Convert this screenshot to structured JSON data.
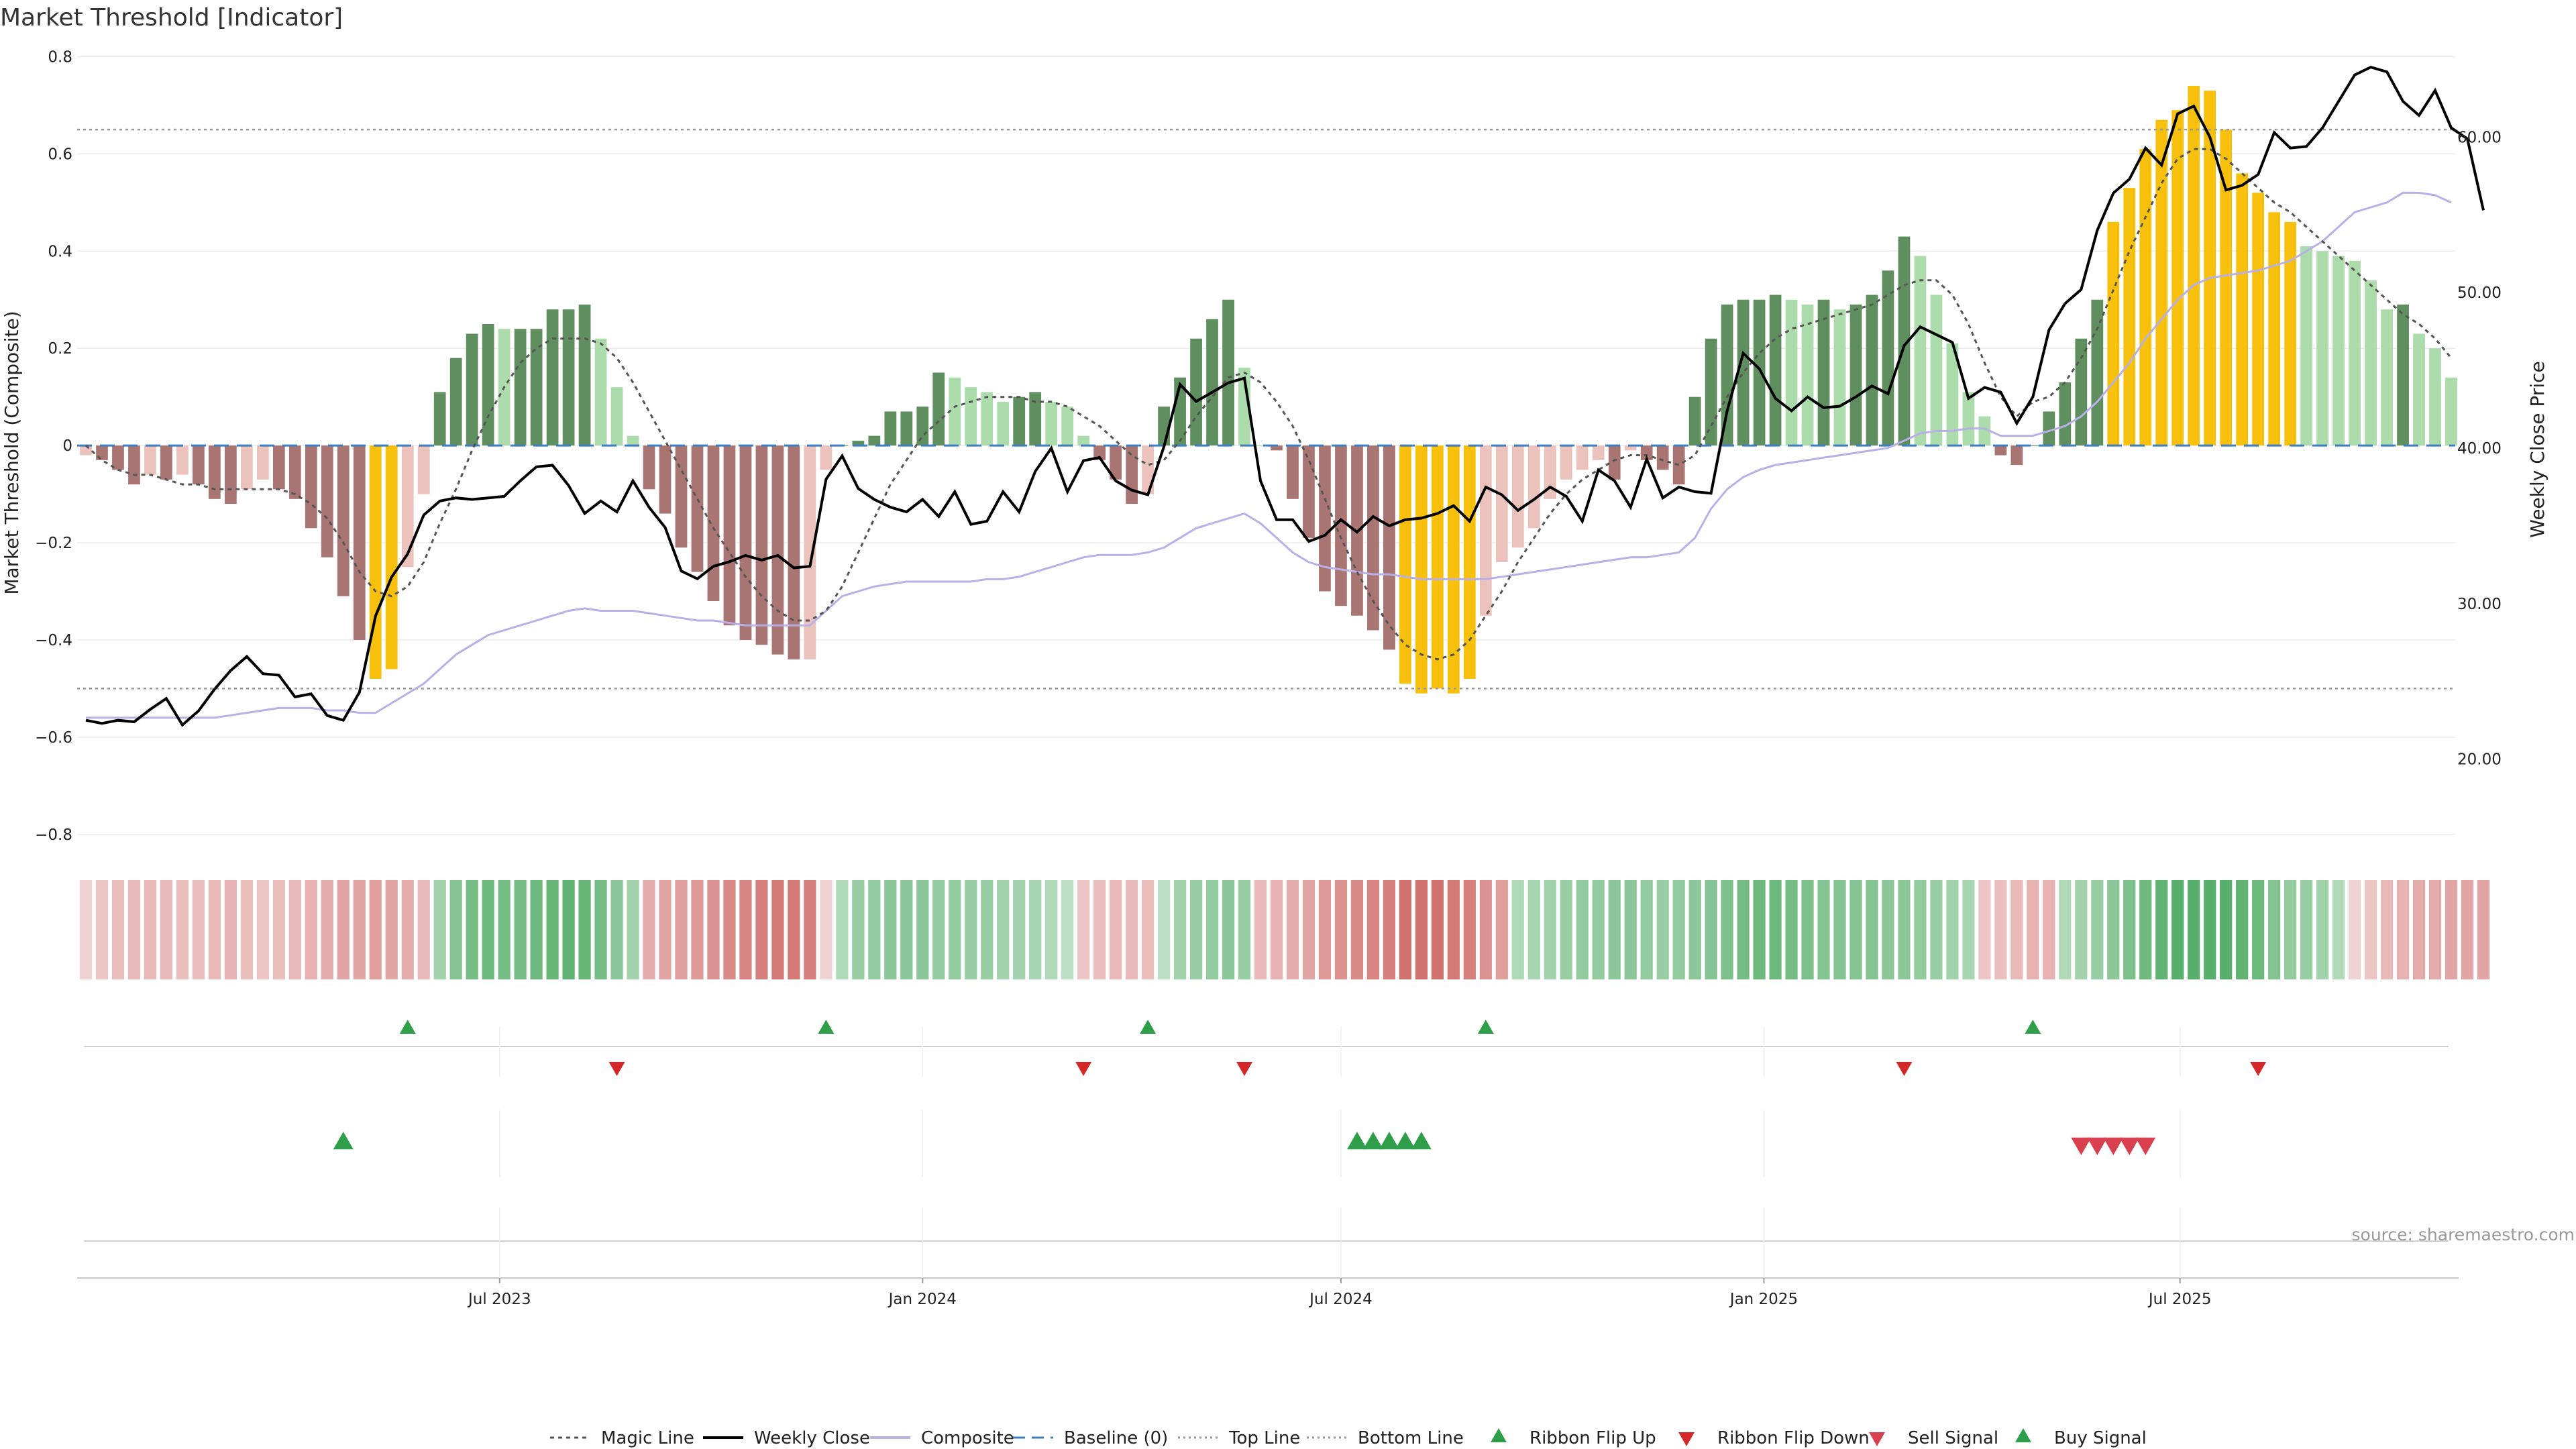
{
  "chart_data": {
    "type": "bar",
    "title": "Market Threshold [Indicator]",
    "ylabel_left": "Market Threshold (Composite)",
    "ylabel_right": "Weekly Close Price",
    "source": "source: sharemaestro.com",
    "ylim_left": [
      -0.85,
      0.82
    ],
    "yticks_left": [
      "0.8",
      "0.6",
      "0.4",
      "0.2",
      "0",
      "−0.2",
      "−0.4",
      "−0.6",
      "−0.8"
    ],
    "ytick_values_left": [
      0.8,
      0.6,
      0.4,
      0.2,
      0,
      -0.2,
      -0.4,
      -0.6,
      -0.8
    ],
    "ylim_right": [
      13.6,
      65.8
    ],
    "yticks_right": [
      "60.00",
      "50.00",
      "40.00",
      "30.00",
      "20.00"
    ],
    "ytick_values_right": [
      60,
      50,
      40,
      30,
      20
    ],
    "x_start": "2023-01-02",
    "date_labels": [
      "Jul 2023",
      "Jan 2024",
      "Jul 2024",
      "Jan 2025",
      "Jul 2025"
    ],
    "date_label_dates": [
      "2023-07-01",
      "2024-01-01",
      "2024-07-01",
      "2025-01-01",
      "2025-07-01"
    ],
    "top_line": 0.65,
    "bottom_line": -0.5,
    "baseline": 0,
    "composite_bars": [
      -0.02,
      -0.03,
      -0.05,
      -0.08,
      -0.06,
      -0.07,
      -0.06,
      -0.08,
      -0.11,
      -0.12,
      -0.09,
      -0.07,
      -0.09,
      -0.11,
      -0.17,
      -0.23,
      -0.31,
      -0.4,
      -0.48,
      -0.46,
      -0.25,
      -0.1,
      0.11,
      0.18,
      0.23,
      0.25,
      0.24,
      0.24,
      0.24,
      0.28,
      0.28,
      0.29,
      0.22,
      0.12,
      0.02,
      -0.09,
      -0.14,
      -0.21,
      -0.26,
      -0.32,
      -0.37,
      -0.4,
      -0.41,
      -0.43,
      -0.44,
      -0.44,
      -0.05,
      0.0,
      0.01,
      0.02,
      0.07,
      0.07,
      0.08,
      0.15,
      0.14,
      0.12,
      0.11,
      0.09,
      0.1,
      0.11,
      0.09,
      0.08,
      0.02,
      -0.03,
      -0.07,
      -0.12,
      -0.1,
      0.08,
      0.14,
      0.22,
      0.26,
      0.3,
      0.16,
      0.0,
      -0.01,
      -0.11,
      -0.19,
      -0.3,
      -0.33,
      -0.35,
      -0.38,
      -0.42,
      -0.49,
      -0.51,
      -0.5,
      -0.51,
      -0.48,
      -0.35,
      -0.24,
      -0.21,
      -0.17,
      -0.11,
      -0.07,
      -0.05,
      -0.03,
      -0.07,
      -0.01,
      -0.03,
      -0.05,
      -0.08,
      0.1,
      0.22,
      0.29,
      0.3,
      0.3,
      0.31,
      0.3,
      0.29,
      0.3,
      0.28,
      0.29,
      0.31,
      0.36,
      0.43,
      0.39,
      0.31,
      0.21,
      0.11,
      0.06,
      -0.02,
      -0.04,
      0.0,
      0.07,
      0.13,
      0.22,
      0.3,
      0.46,
      0.53,
      0.61,
      0.67,
      0.69,
      0.74,
      0.73,
      0.65,
      0.56,
      0.52,
      0.48,
      0.46,
      0.41,
      0.4,
      0.39,
      0.38,
      0.34,
      0.28,
      0.29,
      0.23,
      0.2,
      0.14
    ],
    "weekly_close": [
      22.5,
      22.3,
      22.5,
      22.4,
      23.2,
      23.9,
      22.2,
      23.1,
      24.5,
      25.7,
      26.6,
      25.5,
      25.4,
      24.0,
      24.2,
      22.8,
      22.5,
      24.3,
      29.2,
      31.7,
      33.2,
      35.7,
      36.6,
      36.8,
      36.7,
      36.8,
      36.9,
      37.9,
      38.8,
      38.9,
      37.6,
      35.8,
      36.6,
      35.9,
      37.9,
      36.2,
      34.9,
      32.1,
      31.6,
      32.4,
      32.7,
      33.1,
      32.8,
      33.1,
      32.3,
      32.4,
      38.0,
      39.5,
      37.4,
      36.7,
      36.2,
      35.9,
      36.7,
      35.6,
      37.2,
      35.1,
      35.3,
      37.2,
      35.9,
      38.5,
      40.0,
      37.2,
      39.2,
      39.4,
      37.9,
      37.3,
      37.0,
      40.1,
      44.1,
      43.0,
      43.6,
      44.2,
      44.5,
      37.9,
      35.4,
      35.4,
      34.0,
      34.4,
      35.4,
      34.6,
      35.6,
      35.0,
      35.4,
      35.5,
      35.8,
      36.3,
      35.3,
      37.5,
      37.0,
      36.0,
      36.7,
      37.5,
      36.9,
      35.3,
      38.6,
      37.9,
      36.2,
      39.3,
      36.8,
      37.5,
      37.2,
      37.1,
      42.4,
      46.1,
      45.1,
      43.2,
      42.4,
      43.3,
      42.6,
      42.7,
      43.3,
      44.0,
      43.5,
      46.6,
      47.8,
      47.3,
      46.8,
      43.2,
      43.9,
      43.6,
      41.6,
      43.3,
      47.6,
      49.3,
      50.2,
      54.0,
      56.4,
      57.3,
      59.3,
      58.2,
      61.5,
      62.0,
      60.0,
      56.6,
      56.9,
      57.6,
      60.3,
      59.3,
      59.4,
      60.6,
      62.3,
      64.0,
      64.5,
      64.2,
      62.3,
      61.4,
      63.0,
      60.6,
      59.9,
      55.3
    ],
    "magic_line": [
      0.0,
      -0.03,
      -0.05,
      -0.06,
      -0.06,
      -0.07,
      -0.08,
      -0.08,
      -0.09,
      -0.09,
      -0.09,
      -0.09,
      -0.09,
      -0.1,
      -0.12,
      -0.15,
      -0.2,
      -0.26,
      -0.3,
      -0.31,
      -0.29,
      -0.24,
      -0.16,
      -0.09,
      -0.01,
      0.06,
      0.12,
      0.17,
      0.2,
      0.22,
      0.22,
      0.22,
      0.21,
      0.18,
      0.13,
      0.07,
      0.01,
      -0.05,
      -0.11,
      -0.17,
      -0.22,
      -0.27,
      -0.31,
      -0.34,
      -0.36,
      -0.36,
      -0.34,
      -0.29,
      -0.22,
      -0.15,
      -0.08,
      -0.03,
      0.02,
      0.05,
      0.08,
      0.09,
      0.1,
      0.1,
      0.1,
      0.09,
      0.09,
      0.08,
      0.06,
      0.04,
      0.01,
      -0.02,
      -0.04,
      -0.03,
      0.01,
      0.06,
      0.1,
      0.14,
      0.15,
      0.13,
      0.09,
      0.04,
      -0.03,
      -0.11,
      -0.19,
      -0.26,
      -0.32,
      -0.37,
      -0.41,
      -0.43,
      -0.44,
      -0.43,
      -0.4,
      -0.35,
      -0.3,
      -0.24,
      -0.19,
      -0.14,
      -0.1,
      -0.07,
      -0.05,
      -0.03,
      -0.02,
      -0.02,
      -0.03,
      -0.04,
      -0.02,
      0.04,
      0.1,
      0.15,
      0.19,
      0.22,
      0.24,
      0.25,
      0.26,
      0.27,
      0.28,
      0.29,
      0.31,
      0.33,
      0.34,
      0.34,
      0.31,
      0.25,
      0.17,
      0.1,
      0.06,
      0.09,
      0.1,
      0.13,
      0.18,
      0.24,
      0.32,
      0.4,
      0.47,
      0.54,
      0.59,
      0.61,
      0.61,
      0.59,
      0.56,
      0.53,
      0.5,
      0.48,
      0.45,
      0.42,
      0.39,
      0.36,
      0.33,
      0.3,
      0.27,
      0.25,
      0.22,
      0.18
    ],
    "composite_line": [
      -0.56,
      -0.56,
      -0.56,
      -0.56,
      -0.56,
      -0.56,
      -0.56,
      -0.56,
      -0.56,
      -0.555,
      -0.55,
      -0.545,
      -0.54,
      -0.54,
      -0.54,
      -0.545,
      -0.545,
      -0.55,
      -0.55,
      -0.53,
      -0.51,
      -0.49,
      -0.46,
      -0.43,
      -0.41,
      -0.39,
      -0.38,
      -0.37,
      -0.36,
      -0.35,
      -0.34,
      -0.335,
      -0.34,
      -0.34,
      -0.34,
      -0.345,
      -0.35,
      -0.355,
      -0.36,
      -0.36,
      -0.365,
      -0.37,
      -0.37,
      -0.37,
      -0.37,
      -0.37,
      -0.34,
      -0.31,
      -0.3,
      -0.29,
      -0.285,
      -0.28,
      -0.28,
      -0.28,
      -0.28,
      -0.28,
      -0.275,
      -0.275,
      -0.27,
      -0.26,
      -0.25,
      -0.24,
      -0.23,
      -0.225,
      -0.225,
      -0.225,
      -0.22,
      -0.21,
      -0.19,
      -0.17,
      -0.16,
      -0.15,
      -0.14,
      -0.16,
      -0.19,
      -0.22,
      -0.24,
      -0.25,
      -0.255,
      -0.26,
      -0.265,
      -0.265,
      -0.27,
      -0.275,
      -0.275,
      -0.275,
      -0.275,
      -0.275,
      -0.27,
      -0.265,
      -0.26,
      -0.255,
      -0.25,
      -0.245,
      -0.24,
      -0.235,
      -0.23,
      -0.23,
      -0.225,
      -0.22,
      -0.19,
      -0.13,
      -0.09,
      -0.065,
      -0.05,
      -0.04,
      -0.035,
      -0.03,
      -0.025,
      -0.02,
      -0.015,
      -0.01,
      -0.005,
      0.01,
      0.025,
      0.03,
      0.03,
      0.035,
      0.035,
      0.02,
      0.02,
      0.02,
      0.03,
      0.04,
      0.06,
      0.09,
      0.13,
      0.17,
      0.22,
      0.26,
      0.3,
      0.33,
      0.345,
      0.35,
      0.355,
      0.36,
      0.37,
      0.38,
      0.4,
      0.42,
      0.45,
      0.48,
      0.49,
      0.5,
      0.52,
      0.52,
      0.515,
      0.5
    ],
    "ribbon": [
      -0.1,
      -0.2,
      -0.25,
      -0.3,
      -0.3,
      -0.3,
      -0.25,
      -0.25,
      -0.3,
      -0.35,
      -0.25,
      -0.2,
      -0.25,
      -0.3,
      -0.35,
      -0.4,
      -0.45,
      -0.45,
      -0.5,
      -0.45,
      -0.4,
      -0.3,
      0.4,
      0.6,
      0.7,
      0.75,
      0.7,
      0.7,
      0.75,
      0.8,
      0.85,
      0.8,
      0.7,
      0.55,
      0.4,
      -0.4,
      -0.45,
      -0.5,
      -0.55,
      -0.6,
      -0.65,
      -0.7,
      -0.75,
      -0.8,
      -0.8,
      -0.75,
      -0.1,
      0.3,
      0.45,
      0.5,
      0.55,
      0.55,
      0.55,
      0.5,
      0.5,
      0.45,
      0.45,
      0.4,
      0.4,
      0.35,
      0.3,
      0.2,
      -0.2,
      -0.25,
      -0.3,
      -0.3,
      -0.25,
      0.2,
      0.4,
      0.45,
      0.5,
      0.55,
      0.45,
      -0.3,
      -0.35,
      -0.4,
      -0.45,
      -0.55,
      -0.6,
      -0.65,
      -0.7,
      -0.75,
      -0.85,
      -0.85,
      -0.85,
      -0.8,
      -0.75,
      -0.6,
      -0.5,
      0.3,
      0.35,
      0.4,
      0.45,
      0.5,
      0.5,
      0.55,
      0.55,
      0.5,
      0.45,
      0.5,
      0.55,
      0.6,
      0.65,
      0.7,
      0.75,
      0.75,
      0.7,
      0.65,
      0.6,
      0.6,
      0.6,
      0.6,
      0.55,
      0.55,
      0.5,
      0.45,
      0.4,
      0.35,
      -0.2,
      -0.25,
      -0.3,
      -0.35,
      -0.35,
      0.3,
      0.4,
      0.45,
      0.55,
      0.65,
      0.75,
      0.85,
      0.9,
      0.9,
      0.9,
      0.9,
      0.85,
      0.75,
      0.6,
      0.5,
      0.45,
      0.4,
      0.3,
      -0.1,
      -0.2,
      -0.3,
      -0.35,
      -0.4,
      -0.4,
      -0.45,
      -0.45,
      -0.45
    ],
    "ribbon_flip_up": [
      20,
      46,
      66,
      87,
      121
    ],
    "ribbon_flip_down": [
      33,
      62,
      72,
      113,
      135
    ],
    "buy_signal": [
      16,
      79,
      80,
      81,
      82,
      83
    ],
    "sell_signal": [
      124,
      125,
      126,
      127,
      128
    ],
    "legend": [
      {
        "label": "Magic Line",
        "color": "#555555",
        "style": "dotted-line"
      },
      {
        "label": "Weekly Close",
        "color": "#000000",
        "style": "solid-line"
      },
      {
        "label": "Composite",
        "color": "#b8b0e6",
        "style": "solid-line"
      },
      {
        "label": "Baseline (0)",
        "color": "#3e7dbf",
        "style": "dashed-line"
      },
      {
        "label": "Top Line",
        "color": "#999999",
        "style": "fine-dotted-line"
      },
      {
        "label": "Bottom Line",
        "color": "#999999",
        "style": "fine-dotted-line"
      },
      {
        "label": "Ribbon Flip Up",
        "color": "#2e9e48",
        "style": "triangle-up"
      },
      {
        "label": "Ribbon Flip Down",
        "color": "#d62728",
        "style": "triangle-down"
      },
      {
        "label": "Sell Signal",
        "color": "#d9404f",
        "style": "triangle-down"
      },
      {
        "label": "Buy Signal",
        "color": "#2e9e48",
        "style": "triangle-up"
      }
    ],
    "colors": {
      "bar_pos_strong": "#5f8f5f",
      "bar_pos_light": "#acdcac",
      "bar_neg_strong": "#a97573",
      "bar_neg_light": "#ecc2bd",
      "bar_extreme": "#f7c00c",
      "weekly_close": "#000000",
      "composite": "#b8b0e6",
      "magic_line": "#555555",
      "baseline": "#3e7dbf",
      "threshold": "#999999",
      "ribbon_green": "#4aa85e",
      "ribbon_red": "#cc5f5c",
      "signal_green": "#2e9e48",
      "signal_red": "#d62728",
      "sell_red": "#d9404f"
    }
  }
}
